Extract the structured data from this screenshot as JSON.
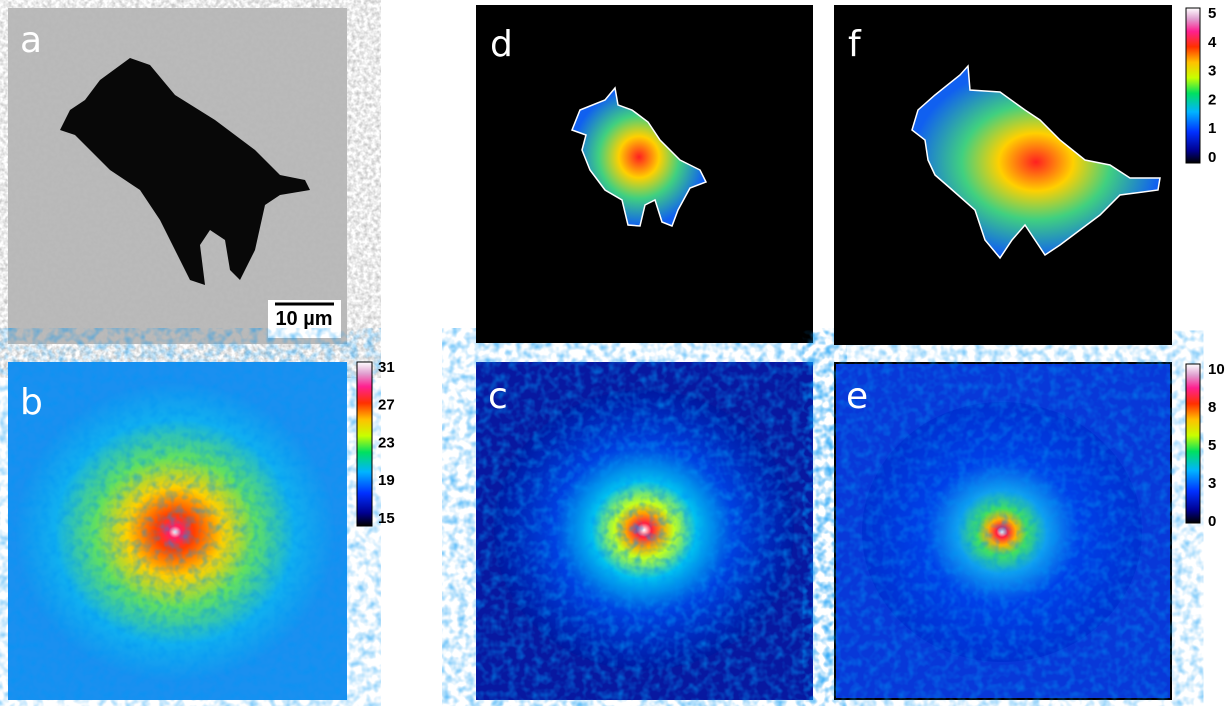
{
  "panels": [
    {
      "label": "a"
    },
    {
      "label": "b"
    },
    {
      "label": "c"
    },
    {
      "label": "d"
    },
    {
      "label": "e"
    },
    {
      "label": "f"
    }
  ],
  "scale_bar": "10 µm",
  "colorbars": [
    {
      "ticks": [
        31,
        27,
        23,
        19,
        15
      ]
    },
    {
      "ticks": [
        5,
        4,
        3,
        2,
        1,
        0
      ]
    },
    {
      "ticks": [
        10,
        8,
        5,
        3,
        0
      ]
    }
  ]
}
